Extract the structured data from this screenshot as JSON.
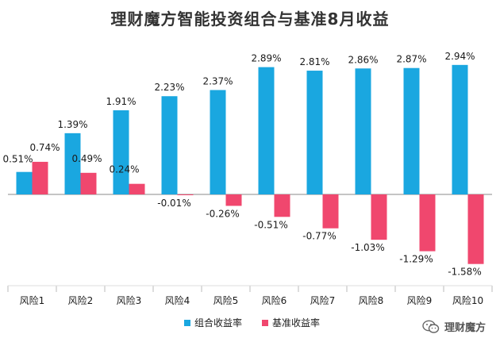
{
  "chart_data": {
    "type": "bar",
    "title": "理财魔方智能投资组合与基准8月收益",
    "categories": [
      "风险1",
      "风险2",
      "风险3",
      "风险4",
      "风险5",
      "风险6",
      "风险7",
      "风险8",
      "风险9",
      "风险10"
    ],
    "series": [
      {
        "name": "组合收益率",
        "color": "#1aa7e0",
        "values": [
          0.51,
          1.39,
          1.91,
          2.23,
          2.37,
          2.89,
          2.81,
          2.86,
          2.87,
          2.94
        ],
        "labels": [
          "0.51%",
          "1.39%",
          "1.91%",
          "2.23%",
          "2.37%",
          "2.89%",
          "2.81%",
          "2.86%",
          "2.87%",
          "2.94%"
        ]
      },
      {
        "name": "基准收益率",
        "color": "#f0476e",
        "values": [
          0.74,
          0.49,
          0.24,
          -0.01,
          -0.26,
          -0.51,
          -0.77,
          -1.03,
          -1.29,
          -1.58
        ],
        "labels": [
          "0.74%",
          "0.49%",
          "0.24%",
          "-0.01%",
          "-0.26%",
          "-0.51%",
          "-0.77%",
          "-1.03%",
          "-1.29%",
          "-1.58%"
        ]
      }
    ],
    "ylim": [
      -1.7,
      3.0
    ],
    "xlabel": "",
    "ylabel": "",
    "grid": false,
    "legend_position": "bottom-center"
  },
  "watermark": {
    "text": "理财魔方",
    "icon": "wechat-icon"
  }
}
